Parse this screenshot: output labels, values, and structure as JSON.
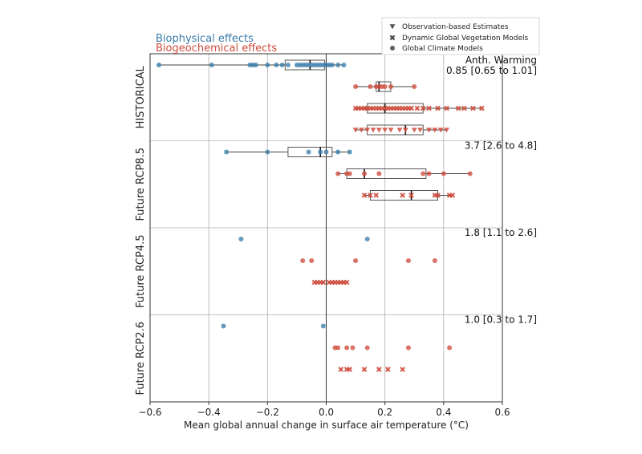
{
  "chart_data": {
    "type": "scatter",
    "xlabel": "Mean global annual change in surface air temperature (°C)",
    "xlim": [
      -0.6,
      0.6
    ],
    "xticks": [
      "−0.6",
      "−0.4",
      "−0.2",
      "0.0",
      "0.2",
      "0.4",
      "0.6"
    ],
    "xtick_values": [
      -0.6,
      -0.4,
      -0.2,
      0.0,
      0.2,
      0.4,
      0.6
    ],
    "grid": true,
    "effect_labels": [
      {
        "name": "Biophysical effects",
        "color": "#3a7cab"
      },
      {
        "name": "Biogeochemical effects",
        "color": "#cf4b3c"
      }
    ],
    "legend": {
      "position": "top-right",
      "entries": [
        {
          "marker": "triangle",
          "label": "Observation-based Estimates"
        },
        {
          "marker": "x",
          "label": "Dynamic Global Vegetation Models"
        },
        {
          "marker": "circle",
          "label": "Global Climate Models"
        }
      ]
    },
    "colors": {
      "biophysical": "#3a7cab",
      "biogeochemical": "#cf4b3c"
    },
    "panels": [
      {
        "label": "HISTORICAL",
        "warming_title": "Anth. Warming",
        "warming": "0.85 [0.65 to 1.01]",
        "rows": [
          {
            "effect": "biophysical",
            "marker": "circle",
            "box": {
              "min": -0.57,
              "q1": -0.14,
              "median": -0.055,
              "q3": -0.005,
              "max": 0.06
            },
            "values": [
              -0.57,
              -0.39,
              -0.26,
              -0.25,
              -0.24,
              -0.2,
              -0.17,
              -0.15,
              -0.13,
              -0.1,
              -0.09,
              -0.08,
              -0.07,
              -0.06,
              -0.05,
              -0.04,
              -0.03,
              -0.02,
              -0.01,
              0.0,
              0.01,
              0.02,
              0.04,
              0.06
            ]
          },
          {
            "effect": "biogeochemical",
            "marker": "circle",
            "box": {
              "min": 0.1,
              "q1": 0.17,
              "median": 0.18,
              "q3": 0.22,
              "max": 0.3
            },
            "values": [
              0.1,
              0.15,
              0.17,
              0.18,
              0.19,
              0.2,
              0.22,
              0.3
            ]
          },
          {
            "effect": "biogeochemical",
            "marker": "x",
            "box": {
              "min": 0.1,
              "q1": 0.14,
              "median": 0.2,
              "q3": 0.33,
              "max": 0.53
            },
            "values": [
              0.1,
              0.11,
              0.12,
              0.13,
              0.14,
              0.15,
              0.16,
              0.17,
              0.18,
              0.19,
              0.2,
              0.21,
              0.22,
              0.23,
              0.24,
              0.25,
              0.26,
              0.27,
              0.28,
              0.29,
              0.31,
              0.33,
              0.35,
              0.38,
              0.41,
              0.45,
              0.47,
              0.5,
              0.53
            ]
          },
          {
            "effect": "biogeochemical",
            "marker": "triangle",
            "box": {
              "min": 0.1,
              "q1": 0.14,
              "median": 0.27,
              "q3": 0.33,
              "max": 0.41
            },
            "values": [
              0.1,
              0.12,
              0.14,
              0.16,
              0.18,
              0.2,
              0.22,
              0.25,
              0.27,
              0.3,
              0.32,
              0.35,
              0.37,
              0.39,
              0.41
            ]
          }
        ]
      },
      {
        "label": "Future RCP8.5",
        "warming": "3.7 [2.6 to 4.8]",
        "rows": [
          {
            "effect": "biophysical",
            "marker": "circle",
            "box": {
              "min": -0.34,
              "q1": -0.13,
              "median": -0.02,
              "q3": 0.02,
              "max": 0.08
            },
            "values": [
              -0.34,
              -0.2,
              -0.06,
              -0.02,
              0.0,
              0.04,
              0.08
            ]
          },
          {
            "effect": "biogeochemical",
            "marker": "circle",
            "box": {
              "min": 0.04,
              "q1": 0.07,
              "median": 0.13,
              "q3": 0.34,
              "max": 0.49
            },
            "values": [
              0.04,
              0.07,
              0.08,
              0.13,
              0.18,
              0.33,
              0.35,
              0.4,
              0.49
            ]
          },
          {
            "effect": "biogeochemical",
            "marker": "x",
            "box": {
              "min": 0.13,
              "q1": 0.15,
              "median": 0.29,
              "q3": 0.38,
              "max": 0.43
            },
            "values": [
              0.13,
              0.15,
              0.17,
              0.26,
              0.29,
              0.37,
              0.38,
              0.42,
              0.43
            ]
          }
        ]
      },
      {
        "label": "Future RCP4.5",
        "warming": "1.8 [1.1 to 2.6]",
        "rows": [
          {
            "effect": "biophysical",
            "marker": "circle",
            "values": [
              -0.29,
              0.14
            ]
          },
          {
            "effect": "biogeochemical",
            "marker": "circle",
            "values": [
              -0.08,
              -0.05,
              0.1,
              0.28,
              0.37
            ]
          },
          {
            "effect": "biogeochemical",
            "marker": "x",
            "values": [
              -0.04,
              -0.03,
              -0.02,
              -0.01,
              0.01,
              0.02,
              0.03,
              0.04,
              0.05,
              0.06,
              0.07
            ]
          }
        ]
      },
      {
        "label": "Future RCP2.6",
        "warming": "1.0 [0.3 to 1.7]",
        "rows": [
          {
            "effect": "biophysical",
            "marker": "circle",
            "values": [
              -0.35,
              -0.01
            ]
          },
          {
            "effect": "biogeochemical",
            "marker": "circle",
            "values": [
              0.03,
              0.04,
              0.07,
              0.09,
              0.14,
              0.28,
              0.42
            ]
          },
          {
            "effect": "biogeochemical",
            "marker": "x",
            "values": [
              0.05,
              0.07,
              0.08,
              0.13,
              0.18,
              0.21,
              0.26
            ]
          }
        ]
      }
    ]
  }
}
